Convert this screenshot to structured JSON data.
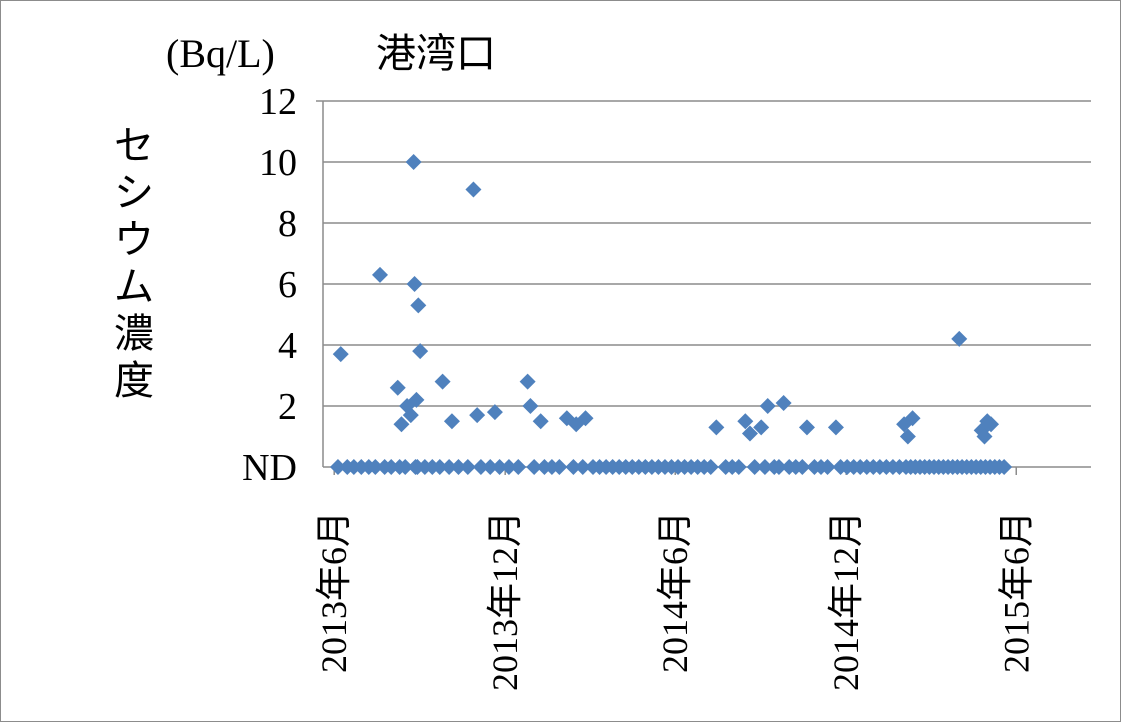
{
  "chart_data": {
    "type": "scatter",
    "title": "港湾口",
    "unit_label": "(Bq/L)",
    "ylabel": "セシウム濃度",
    "xlabel": "",
    "grid": true,
    "legend": "none",
    "marker_color": "#4F81BD",
    "xlim": [
      "2013-05-20",
      "2015-08-20"
    ],
    "ylim": [
      0,
      12
    ],
    "y_ticks": [
      {
        "value": 0,
        "label": "ND"
      },
      {
        "value": 2,
        "label": "2"
      },
      {
        "value": 4,
        "label": "4"
      },
      {
        "value": 6,
        "label": "6"
      },
      {
        "value": 8,
        "label": "8"
      },
      {
        "value": 10,
        "label": "10"
      },
      {
        "value": 12,
        "label": "12"
      }
    ],
    "x_ticks": [
      {
        "value": "2013-06-01",
        "label": "2013年6月"
      },
      {
        "value": "2013-12-01",
        "label": "2013年12月"
      },
      {
        "value": "2014-06-01",
        "label": "2014年6月"
      },
      {
        "value": "2014-12-01",
        "label": "2014年12月"
      },
      {
        "value": "2015-06-01",
        "label": "2015年6月"
      }
    ],
    "series": [
      {
        "points": [
          [
            "2013-06-08",
            3.7
          ],
          [
            "2013-07-20",
            6.3
          ],
          [
            "2013-08-08",
            2.6
          ],
          [
            "2013-08-12",
            1.4
          ],
          [
            "2013-08-18",
            2.0
          ],
          [
            "2013-08-22",
            1.7
          ],
          [
            "2013-08-25",
            10.0
          ],
          [
            "2013-08-26",
            6.0
          ],
          [
            "2013-08-28",
            2.2
          ],
          [
            "2013-08-30",
            5.3
          ],
          [
            "2013-09-01",
            3.8
          ],
          [
            "2013-09-25",
            2.8
          ],
          [
            "2013-10-05",
            1.5
          ],
          [
            "2013-10-28",
            9.1
          ],
          [
            "2013-11-01",
            1.7
          ],
          [
            "2013-11-20",
            1.8
          ],
          [
            "2013-12-25",
            2.8
          ],
          [
            "2013-12-28",
            2.0
          ],
          [
            "2014-01-08",
            1.5
          ],
          [
            "2014-02-05",
            1.6
          ],
          [
            "2014-02-15",
            1.4
          ],
          [
            "2014-02-25",
            1.6
          ],
          [
            "2014-07-15",
            1.3
          ],
          [
            "2014-08-15",
            1.5
          ],
          [
            "2014-08-20",
            1.1
          ],
          [
            "2014-09-01",
            1.3
          ],
          [
            "2014-09-08",
            2.0
          ],
          [
            "2014-09-25",
            2.1
          ],
          [
            "2014-10-20",
            1.3
          ],
          [
            "2014-11-20",
            1.3
          ],
          [
            "2015-02-01",
            1.4
          ],
          [
            "2015-02-05",
            1.0
          ],
          [
            "2015-02-10",
            1.6
          ],
          [
            "2015-04-01",
            4.2
          ],
          [
            "2015-04-25",
            1.2
          ],
          [
            "2015-04-28",
            1.0
          ],
          [
            "2015-05-01",
            1.5
          ],
          [
            "2015-05-05",
            1.4
          ],
          [
            "2013-06-05",
            0
          ],
          [
            "2013-06-15",
            0
          ],
          [
            "2013-06-22",
            0
          ],
          [
            "2013-06-30",
            0
          ],
          [
            "2013-07-08",
            0
          ],
          [
            "2013-07-15",
            0
          ],
          [
            "2013-07-25",
            0
          ],
          [
            "2013-08-01",
            0
          ],
          [
            "2013-08-10",
            0
          ],
          [
            "2013-08-16",
            0
          ],
          [
            "2013-08-27",
            0
          ],
          [
            "2013-08-29",
            0
          ],
          [
            "2013-09-06",
            0
          ],
          [
            "2013-09-14",
            0
          ],
          [
            "2013-09-22",
            0
          ],
          [
            "2013-10-02",
            0
          ],
          [
            "2013-10-12",
            0
          ],
          [
            "2013-10-22",
            0
          ],
          [
            "2013-11-05",
            0
          ],
          [
            "2013-11-15",
            0
          ],
          [
            "2013-11-25",
            0
          ],
          [
            "2013-12-05",
            0
          ],
          [
            "2013-12-15",
            0
          ],
          [
            "2014-01-01",
            0
          ],
          [
            "2014-01-12",
            0
          ],
          [
            "2014-01-20",
            0
          ],
          [
            "2014-01-28",
            0
          ],
          [
            "2014-02-12",
            0
          ],
          [
            "2014-02-22",
            0
          ],
          [
            "2014-03-05",
            0
          ],
          [
            "2014-03-12",
            0
          ],
          [
            "2014-03-19",
            0
          ],
          [
            "2014-03-26",
            0
          ],
          [
            "2014-04-02",
            0
          ],
          [
            "2014-04-09",
            0
          ],
          [
            "2014-04-16",
            0
          ],
          [
            "2014-04-23",
            0
          ],
          [
            "2014-04-30",
            0
          ],
          [
            "2014-05-07",
            0
          ],
          [
            "2014-05-14",
            0
          ],
          [
            "2014-05-21",
            0
          ],
          [
            "2014-05-28",
            0
          ],
          [
            "2014-06-04",
            0
          ],
          [
            "2014-06-11",
            0
          ],
          [
            "2014-06-18",
            0
          ],
          [
            "2014-06-25",
            0
          ],
          [
            "2014-07-02",
            0
          ],
          [
            "2014-07-09",
            0
          ],
          [
            "2014-07-25",
            0
          ],
          [
            "2014-08-01",
            0
          ],
          [
            "2014-08-08",
            0
          ],
          [
            "2014-08-25",
            0
          ],
          [
            "2014-09-05",
            0
          ],
          [
            "2014-09-15",
            0
          ],
          [
            "2014-09-20",
            0
          ],
          [
            "2014-10-01",
            0
          ],
          [
            "2014-10-08",
            0
          ],
          [
            "2014-10-15",
            0
          ],
          [
            "2014-10-28",
            0
          ],
          [
            "2014-11-04",
            0
          ],
          [
            "2014-11-11",
            0
          ],
          [
            "2014-11-25",
            0
          ],
          [
            "2014-12-02",
            0
          ],
          [
            "2014-12-09",
            0
          ],
          [
            "2014-12-16",
            0
          ],
          [
            "2014-12-23",
            0
          ],
          [
            "2014-12-30",
            0
          ],
          [
            "2015-01-06",
            0
          ],
          [
            "2015-01-13",
            0
          ],
          [
            "2015-01-20",
            0
          ],
          [
            "2015-01-27",
            0
          ],
          [
            "2015-02-03",
            0
          ],
          [
            "2015-02-08",
            0
          ],
          [
            "2015-02-13",
            0
          ],
          [
            "2015-02-18",
            0
          ],
          [
            "2015-02-23",
            0
          ],
          [
            "2015-02-28",
            0
          ],
          [
            "2015-03-05",
            0
          ],
          [
            "2015-03-10",
            0
          ],
          [
            "2015-03-15",
            0
          ],
          [
            "2015-03-20",
            0
          ],
          [
            "2015-03-25",
            0
          ],
          [
            "2015-03-30",
            0
          ],
          [
            "2015-04-04",
            0
          ],
          [
            "2015-04-09",
            0
          ],
          [
            "2015-04-14",
            0
          ],
          [
            "2015-04-19",
            0
          ],
          [
            "2015-04-24",
            0
          ],
          [
            "2015-04-29",
            0
          ],
          [
            "2015-05-04",
            0
          ],
          [
            "2015-05-09",
            0
          ],
          [
            "2015-05-14",
            0
          ],
          [
            "2015-05-19",
            0
          ]
        ]
      }
    ]
  }
}
